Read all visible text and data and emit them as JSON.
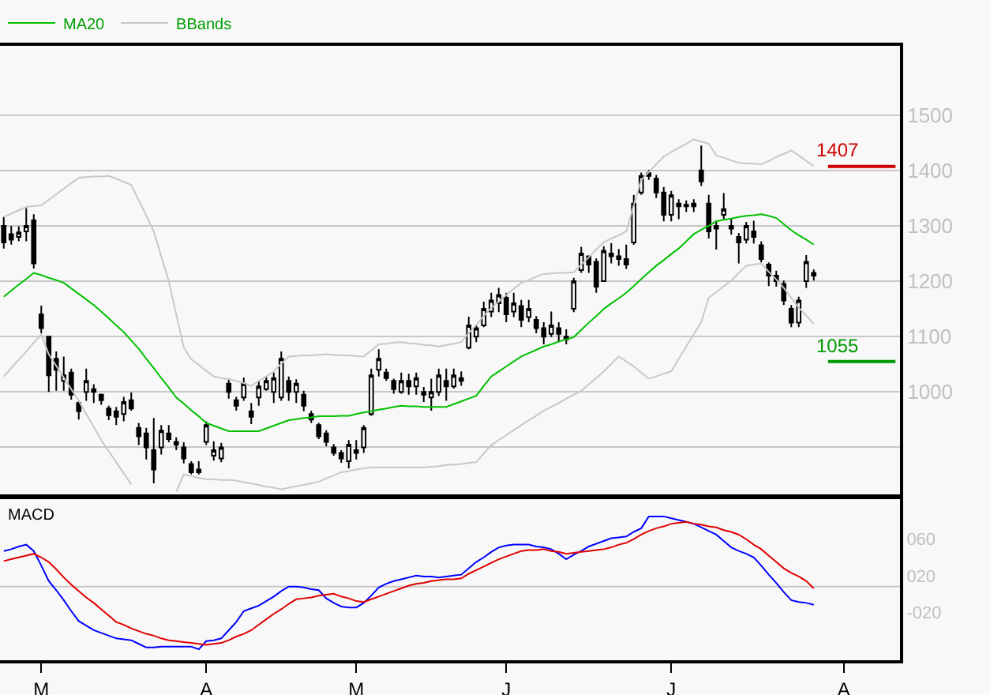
{
  "chart_data": [
    {
      "type": "candlestick",
      "legend": "top left",
      "grid": "y",
      "tick_labels": "y",
      "ylim": [
        815,
        1625
      ],
      "yticks": [
        {
          "value": 900,
          "label": null
        },
        1000,
        1100,
        1200,
        1300,
        1400,
        1500
      ],
      "categories": [
        null,
        null,
        null,
        null,
        null,
        null,
        null,
        null,
        null,
        null,
        null,
        null,
        null,
        null,
        null,
        null,
        null,
        null,
        null,
        null,
        null,
        null,
        null,
        null,
        null,
        null,
        null,
        null,
        null,
        null,
        null,
        null,
        null,
        null,
        null,
        null,
        null,
        null,
        null,
        null,
        null,
        null,
        null,
        null,
        null,
        null,
        null,
        null,
        null,
        null,
        null,
        null,
        null,
        null,
        null,
        null,
        null,
        null,
        null,
        null,
        null,
        null,
        null,
        null,
        null,
        null,
        null,
        null,
        null,
        null,
        null,
        null,
        null,
        null,
        null,
        null,
        null,
        null,
        null,
        null,
        null,
        null,
        null,
        null,
        null,
        null,
        null,
        null,
        null,
        null,
        null,
        null,
        null,
        null,
        null,
        null,
        null,
        null,
        null,
        null,
        null,
        null,
        null,
        null,
        null,
        null,
        null,
        null,
        null,
        null,
        null,
        null,
        null,
        null,
        null,
        null,
        null,
        null,
        null,
        null
      ],
      "ohlc": [
        [
          1300,
          1316,
          1259,
          1270
        ],
        [
          1285,
          1300,
          1266,
          1275
        ],
        [
          1280,
          1299,
          1272,
          1288
        ],
        [
          1290,
          1332,
          1272,
          1300
        ],
        [
          1310,
          1321,
          1223,
          1232
        ],
        [
          1140,
          1156,
          1106,
          1115
        ],
        [
          1100,
          1101,
          1000,
          1030
        ],
        [
          1060,
          1073,
          1002,
          1040
        ],
        [
          1020,
          1064,
          1002,
          1030
        ],
        [
          1035,
          1042,
          986,
          995
        ],
        [
          980,
          984,
          950,
          965
        ],
        [
          1000,
          1042,
          984,
          1020
        ],
        [
          1005,
          1014,
          980,
          1000
        ],
        [
          995,
          997,
          977,
          985
        ],
        [
          970,
          975,
          949,
          958
        ],
        [
          965,
          973,
          940,
          955
        ],
        [
          960,
          991,
          947,
          982
        ],
        [
          985,
          999,
          966,
          970
        ],
        [
          935,
          944,
          904,
          920
        ],
        [
          925,
          935,
          878,
          900
        ],
        [
          895,
          953,
          835,
          860
        ],
        [
          900,
          940,
          887,
          930
        ],
        [
          925,
          940,
          909,
          915
        ],
        [
          910,
          918,
          895,
          905
        ],
        [
          900,
          909,
          871,
          880
        ],
        [
          870,
          875,
          851,
          855
        ],
        [
          855,
          875,
          851,
          860
        ],
        [
          910,
          947,
          904,
          940
        ],
        [
          885,
          911,
          876,
          895
        ],
        [
          880,
          908,
          873,
          900
        ],
        [
          1015,
          1024,
          988,
          1000
        ],
        [
          985,
          991,
          966,
          975
        ],
        [
          990,
          1026,
          984,
          1015
        ],
        [
          965,
          980,
          942,
          955
        ],
        [
          990,
          1020,
          975,
          1010
        ],
        [
          1005,
          1028,
          1002,
          1020
        ],
        [
          1000,
          1035,
          980,
          1025
        ],
        [
          990,
          1073,
          984,
          1060
        ],
        [
          1020,
          1028,
          984,
          1000
        ],
        [
          1000,
          1023,
          980,
          1015
        ],
        [
          995,
          1002,
          965,
          975
        ],
        [
          960,
          966,
          944,
          950
        ],
        [
          940,
          944,
          915,
          920
        ],
        [
          925,
          931,
          902,
          910
        ],
        [
          900,
          906,
          885,
          890
        ],
        [
          890,
          895,
          872,
          880
        ],
        [
          875,
          913,
          862,
          905
        ],
        [
          890,
          913,
          878,
          895
        ],
        [
          900,
          940,
          890,
          935
        ],
        [
          960,
          1042,
          957,
          1030
        ],
        [
          1040,
          1077,
          1028,
          1060
        ],
        [
          1035,
          1042,
          1020,
          1025
        ],
        [
          1020,
          1024,
          997,
          1005
        ],
        [
          1000,
          1035,
          997,
          1020
        ],
        [
          1020,
          1033,
          995,
          1010
        ],
        [
          1010,
          1035,
          995,
          1025
        ],
        [
          1000,
          1009,
          982,
          995
        ],
        [
          990,
          1024,
          966,
          1000
        ],
        [
          1000,
          1042,
          993,
          1030
        ],
        [
          1020,
          1042,
          984,
          1010
        ],
        [
          1010,
          1042,
          1006,
          1030
        ],
        [
          1025,
          1037,
          1011,
          1020
        ],
        [
          1080,
          1136,
          1077,
          1120
        ],
        [
          1100,
          1121,
          1090,
          1115
        ],
        [
          1120,
          1163,
          1117,
          1150
        ],
        [
          1145,
          1179,
          1135,
          1165
        ],
        [
          1160,
          1188,
          1144,
          1175
        ],
        [
          1170,
          1179,
          1126,
          1140
        ],
        [
          1145,
          1179,
          1135,
          1160
        ],
        [
          1155,
          1166,
          1117,
          1130
        ],
        [
          1135,
          1166,
          1126,
          1150
        ],
        [
          1130,
          1137,
          1106,
          1115
        ],
        [
          1115,
          1126,
          1086,
          1100
        ],
        [
          1105,
          1145,
          1099,
          1120
        ],
        [
          1115,
          1126,
          1090,
          1105
        ],
        [
          1100,
          1113,
          1086,
          1095
        ],
        [
          1150,
          1206,
          1144,
          1200
        ],
        [
          1220,
          1262,
          1215,
          1250
        ],
        [
          1245,
          1246,
          1215,
          1230
        ],
        [
          1235,
          1241,
          1179,
          1190
        ],
        [
          1200,
          1263,
          1199,
          1255
        ],
        [
          1250,
          1269,
          1232,
          1245
        ],
        [
          1245,
          1258,
          1228,
          1240
        ],
        [
          1240,
          1266,
          1222,
          1230
        ],
        [
          1270,
          1356,
          1266,
          1340
        ],
        [
          1360,
          1396,
          1356,
          1390
        ],
        [
          1390,
          1401,
          1383,
          1395
        ],
        [
          1385,
          1392,
          1350,
          1360
        ],
        [
          1360,
          1370,
          1308,
          1320
        ],
        [
          1320,
          1363,
          1308,
          1355
        ],
        [
          1340,
          1348,
          1312,
          1335
        ],
        [
          1335,
          1346,
          1325,
          1338
        ],
        [
          1335,
          1348,
          1325,
          1340
        ],
        [
          1400,
          1445,
          1372,
          1380
        ],
        [
          1340,
          1356,
          1277,
          1290
        ],
        [
          1295,
          1310,
          1257,
          1300
        ],
        [
          1320,
          1359,
          1312,
          1330
        ],
        [
          1300,
          1314,
          1284,
          1295
        ],
        [
          1280,
          1287,
          1232,
          1270
        ],
        [
          1275,
          1307,
          1268,
          1300
        ],
        [
          1290,
          1309,
          1268,
          1280
        ],
        [
          1265,
          1272,
          1234,
          1240
        ],
        [
          1230,
          1234,
          1191,
          1210
        ],
        [
          1210,
          1219,
          1190,
          1200
        ],
        [
          1195,
          1201,
          1157,
          1165
        ],
        [
          1150,
          1157,
          1117,
          1125
        ],
        [
          1125,
          1172,
          1117,
          1165
        ],
        [
          1200,
          1247,
          1188,
          1235
        ],
        [
          1210,
          1221,
          1201,
          1215
        ],
        null,
        null,
        null,
        null,
        null,
        null,
        null,
        null,
        null,
        null,
        null
      ],
      "series": [
        {
          "name": "MA20",
          "type": "line",
          "color": "#00c000",
          "values": [
            1172,
            1183,
            1194,
            1204,
            1215,
            1211,
            1206,
            1202,
            1197,
            1187,
            1177,
            1167,
            1157,
            1145,
            1133,
            1120,
            1108,
            1093,
            1078,
            1060,
            1043,
            1025,
            1008,
            990,
            979,
            967,
            956,
            944,
            939,
            934,
            929,
            929,
            929,
            929,
            929,
            934,
            939,
            944,
            949,
            951,
            953,
            954,
            956,
            956,
            956,
            957,
            957,
            960,
            963,
            965,
            968,
            970,
            973,
            975,
            974,
            974,
            973,
            973,
            973,
            973,
            978,
            983,
            988,
            993,
            1011,
            1028,
            1037,
            1046,
            1055,
            1064,
            1070,
            1076,
            1082,
            1086,
            1091,
            1095,
            1099,
            1112,
            1125,
            1137,
            1150,
            1160,
            1169,
            1179,
            1191,
            1204,
            1216,
            1228,
            1238,
            1249,
            1259,
            1272,
            1285,
            1293,
            1300,
            1308,
            1311,
            1313,
            1316,
            1318,
            1319,
            1321,
            1318,
            1314,
            1303,
            1292,
            1283,
            1275,
            1266,
            null,
            null,
            null,
            null,
            null,
            null,
            null,
            null,
            null,
            null,
            null
          ]
        },
        {
          "name": "BBands",
          "type": "line",
          "color": "#c8c8c8",
          "values": [
            1316,
            1322,
            1328,
            1334,
            1336,
            1337,
            1347,
            1357,
            1367,
            1377,
            1387,
            1388,
            1389,
            1389,
            1390,
            1385,
            1379,
            1374,
            1346,
            1318,
            1290,
            1245,
            1200,
            1140,
            1080,
            1059,
            1049,
            1038,
            1028,
            1025,
            1023,
            1020,
            1016,
            1011,
            1020,
            1028,
            1037,
            1051,
            1064,
            1065,
            1066,
            1066,
            1067,
            1068,
            1067,
            1066,
            1066,
            1065,
            1064,
            1075,
            1086,
            1087,
            1089,
            1090,
            1088,
            1087,
            1085,
            1084,
            1082,
            1085,
            1087,
            1090,
            1106,
            1121,
            1137,
            1152,
            1163,
            1175,
            1186,
            1197,
            1202,
            1208,
            1213,
            1214,
            1215,
            1215,
            1216,
            1230,
            1243,
            1257,
            1270,
            1277,
            1283,
            1290,
            1337,
            1383,
            1397,
            1411,
            1425,
            1433,
            1441,
            1448,
            1456,
            1452,
            1448,
            1427,
            1423,
            1418,
            1414,
            1413,
            1412,
            1411,
            1417,
            1424,
            1430,
            1436,
            1427,
            1417,
            1408,
            null,
            null,
            null,
            null,
            null,
            null,
            null,
            null,
            null,
            null,
            null
          ]
        },
        {
          "type": "line",
          "color": "#c8c8c8",
          "values": [
            1028,
            1043,
            1058,
            1073,
            1089,
            1104,
            1068,
            1047,
            1026,
            1005,
            984,
            960,
            937,
            913,
            893,
            873,
            853,
            833,
            null,
            null,
            null,
            null,
            null,
            820,
            851,
            848,
            845,
            842,
            842,
            841,
            841,
            840,
            837,
            835,
            832,
            829,
            827,
            824,
            827,
            830,
            832,
            835,
            838,
            844,
            849,
            855,
            857,
            860,
            862,
            864,
            864,
            864,
            864,
            864,
            864,
            864,
            864,
            865,
            866,
            868,
            869,
            870,
            872,
            873,
            889,
            904,
            913,
            922,
            931,
            940,
            949,
            957,
            966,
            973,
            980,
            988,
            995,
            1002,
            1014,
            1025,
            1037,
            1051,
            1064,
            1055,
            1046,
            1035,
            1024,
            1028,
            1033,
            1037,
            1060,
            1082,
            1104,
            1126,
            1170,
            1180,
            1191,
            1201,
            1215,
            1228,
            1230,
            1232,
            1217,
            1203,
            1188,
            1170,
            1152,
            1138,
            1123,
            null,
            null,
            null,
            null,
            null,
            null,
            null,
            null,
            null,
            null,
            null
          ]
        }
      ],
      "ref_lines": [
        {
          "axis": "y",
          "value": 1407,
          "label": "1407",
          "color": "#cc0000"
        },
        {
          "axis": "y",
          "value": 1055,
          "label": "1055",
          "color": "#009900"
        }
      ]
    },
    {
      "type": "line",
      "title": "MACD",
      "ylim": [
        -73,
        104
      ],
      "yticks": [
        {
          "value": 60,
          "label": "060"
        },
        {
          "value": 20,
          "label": "020"
        },
        {
          "value": -20,
          "label": "-020"
        }
      ],
      "categories": [
        null,
        null,
        null,
        null,
        null,
        "M",
        null,
        null,
        null,
        null,
        null,
        null,
        null,
        null,
        null,
        null,
        null,
        null,
        null,
        null,
        null,
        null,
        null,
        null,
        null,
        null,
        null,
        "A",
        null,
        null,
        null,
        null,
        null,
        null,
        null,
        null,
        null,
        null,
        null,
        null,
        null,
        null,
        null,
        null,
        null,
        null,
        null,
        "M",
        null,
        null,
        null,
        null,
        null,
        null,
        null,
        null,
        null,
        null,
        null,
        null,
        null,
        null,
        null,
        null,
        null,
        null,
        null,
        "J",
        null,
        null,
        null,
        null,
        null,
        null,
        null,
        null,
        null,
        null,
        null,
        null,
        null,
        null,
        null,
        null,
        null,
        null,
        null,
        null,
        null,
        "J",
        null,
        null,
        null,
        null,
        null,
        null,
        null,
        null,
        null,
        null,
        null,
        null,
        null,
        null,
        null,
        null,
        null,
        null,
        null,
        null,
        null,
        null,
        "A",
        null,
        null,
        null,
        null,
        null,
        null,
        null
      ],
      "series": [
        {
          "color": "#0000ff",
          "values": [
            47,
            49,
            52,
            54,
            47,
            31,
            14,
            4,
            -7,
            -19,
            -30,
            -35,
            -40,
            -43,
            -46,
            -49,
            -50,
            -51,
            -55,
            -59,
            -59,
            -58,
            -58,
            -58,
            -58,
            -58,
            -61,
            -52,
            -51,
            -49,
            -40,
            -31,
            -19,
            -16,
            -13,
            -8,
            -3,
            3,
            8,
            8,
            7,
            5,
            4,
            -5,
            -10,
            -14,
            -15,
            -15,
            -10,
            -2,
            7,
            11,
            14,
            16,
            18,
            20,
            19,
            19,
            18,
            19,
            20,
            21,
            28,
            35,
            40,
            46,
            51,
            53,
            54,
            54,
            54,
            52,
            51,
            49,
            44,
            38,
            43,
            47,
            52,
            55,
            58,
            61,
            62,
            63,
            68,
            72,
            85,
            85,
            85,
            83,
            81,
            79,
            77,
            73,
            69,
            65,
            58,
            51,
            47,
            44,
            40,
            31,
            21,
            12,
            2,
            -7,
            -9,
            -10,
            -12,
            null,
            null,
            null,
            null,
            null,
            null,
            null,
            null,
            null,
            null,
            null
          ]
        },
        {
          "color": "#e00000",
          "values": [
            36,
            38,
            40,
            42,
            44,
            40,
            35,
            27,
            18,
            10,
            3,
            -4,
            -10,
            -17,
            -24,
            -31,
            -34,
            -38,
            -41,
            -44,
            -46,
            -49,
            -51,
            -52,
            -53,
            -54,
            -55,
            -56,
            -55,
            -54,
            -51,
            -47,
            -44,
            -40,
            -34,
            -28,
            -22,
            -17,
            -11,
            -6,
            -5,
            -4,
            -2,
            -1,
            0,
            -3,
            -5,
            -8,
            -9,
            -6,
            -3,
            0,
            3,
            6,
            9,
            11,
            12,
            14,
            15,
            16,
            16,
            17,
            22,
            26,
            30,
            34,
            38,
            41,
            44,
            47,
            48,
            48,
            49,
            47,
            46,
            44,
            45,
            46,
            47,
            48,
            49,
            51,
            54,
            56,
            60,
            65,
            69,
            72,
            74,
            77,
            78,
            79,
            77,
            76,
            74,
            73,
            70,
            68,
            65,
            60,
            54,
            49,
            42,
            35,
            28,
            23,
            19,
            14,
            6,
            null,
            null,
            null,
            null,
            null,
            null,
            null,
            null,
            null,
            null,
            null
          ]
        }
      ],
      "ref_lines": [
        {
          "axis": "y",
          "value": 8,
          "color": "#c8c8c8"
        }
      ]
    }
  ]
}
